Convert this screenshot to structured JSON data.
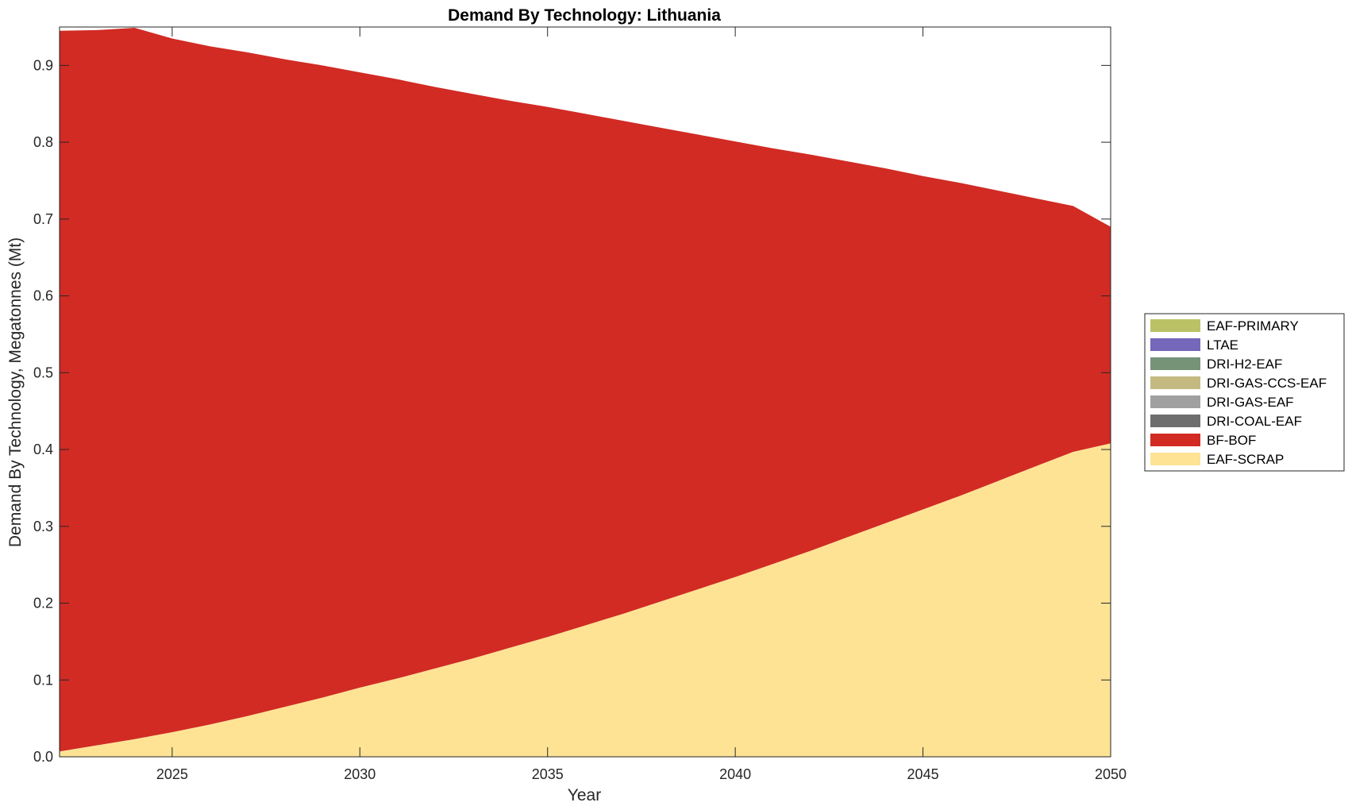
{
  "chart_data": {
    "type": "area",
    "title": "Demand By Technology: Lithuania",
    "xlabel": "Year",
    "ylabel": "Demand By Technology, Megatonnes (Mt)",
    "xlim": [
      2022,
      2050
    ],
    "ylim": [
      0,
      0.95
    ],
    "xticks": [
      2025,
      2030,
      2035,
      2040,
      2045,
      2050
    ],
    "yticks": [
      0.0,
      0.1,
      0.2,
      0.3,
      0.4,
      0.5,
      0.6,
      0.7,
      0.8,
      0.9
    ],
    "ytick_labels": [
      "0.0",
      "0.1",
      "0.2",
      "0.3",
      "0.4",
      "0.5",
      "0.6",
      "0.7",
      "0.8",
      "0.9"
    ],
    "grid": false,
    "stacked": true,
    "legend_position": "right",
    "x": [
      2022,
      2023,
      2024,
      2025,
      2026,
      2027,
      2028,
      2029,
      2030,
      2031,
      2032,
      2033,
      2034,
      2035,
      2036,
      2037,
      2038,
      2039,
      2040,
      2041,
      2042,
      2043,
      2044,
      2045,
      2046,
      2047,
      2048,
      2049,
      2050
    ],
    "series": [
      {
        "name": "EAF-SCRAP",
        "color": "#FEE395",
        "values": [
          0.007,
          0.015,
          0.023,
          0.032,
          0.042,
          0.053,
          0.065,
          0.077,
          0.09,
          0.102,
          0.115,
          0.128,
          0.142,
          0.156,
          0.171,
          0.186,
          0.202,
          0.218,
          0.234,
          0.251,
          0.268,
          0.286,
          0.304,
          0.322,
          0.34,
          0.359,
          0.378,
          0.397,
          0.408
        ]
      },
      {
        "name": "BF-BOF",
        "color": "#D12B24",
        "values": [
          0.938,
          0.931,
          0.926,
          0.903,
          0.883,
          0.864,
          0.843,
          0.823,
          0.801,
          0.78,
          0.757,
          0.735,
          0.712,
          0.69,
          0.666,
          0.642,
          0.617,
          0.592,
          0.567,
          0.541,
          0.516,
          0.489,
          0.462,
          0.434,
          0.407,
          0.378,
          0.349,
          0.32,
          0.282
        ]
      },
      {
        "name": "DRI-COAL-EAF",
        "color": "#6E6E6E",
        "values": [
          0,
          0,
          0,
          0,
          0,
          0,
          0,
          0,
          0,
          0,
          0,
          0,
          0,
          0,
          0,
          0,
          0,
          0,
          0,
          0,
          0,
          0,
          0,
          0,
          0,
          0,
          0,
          0,
          0
        ]
      },
      {
        "name": "DRI-GAS-EAF",
        "color": "#A0A0A0",
        "values": [
          0,
          0,
          0,
          0,
          0,
          0,
          0,
          0,
          0,
          0,
          0,
          0,
          0,
          0,
          0,
          0,
          0,
          0,
          0,
          0,
          0,
          0,
          0,
          0,
          0,
          0,
          0,
          0,
          0
        ]
      },
      {
        "name": "DRI-GAS-CCS-EAF",
        "color": "#C4BA81",
        "values": [
          0,
          0,
          0,
          0,
          0,
          0,
          0,
          0,
          0,
          0,
          0,
          0,
          0,
          0,
          0,
          0,
          0,
          0,
          0,
          0,
          0,
          0,
          0,
          0,
          0,
          0,
          0,
          0,
          0
        ]
      },
      {
        "name": "DRI-H2-EAF",
        "color": "#769378",
        "values": [
          0,
          0,
          0,
          0,
          0,
          0,
          0,
          0,
          0,
          0,
          0,
          0,
          0,
          0,
          0,
          0,
          0,
          0,
          0,
          0,
          0,
          0,
          0,
          0,
          0,
          0,
          0,
          0,
          0
        ]
      },
      {
        "name": "LTAE",
        "color": "#7567BA",
        "values": [
          0,
          0,
          0,
          0,
          0,
          0,
          0,
          0,
          0,
          0,
          0,
          0,
          0,
          0,
          0,
          0,
          0,
          0,
          0,
          0,
          0,
          0,
          0,
          0,
          0,
          0,
          0,
          0,
          0
        ]
      },
      {
        "name": "EAF-PRIMARY",
        "color": "#BBC266",
        "values": [
          0,
          0,
          0,
          0,
          0,
          0,
          0,
          0,
          0,
          0,
          0,
          0,
          0,
          0,
          0,
          0,
          0,
          0,
          0,
          0,
          0,
          0,
          0,
          0,
          0,
          0,
          0,
          0,
          0
        ]
      }
    ],
    "legend_order": [
      "EAF-PRIMARY",
      "LTAE",
      "DRI-H2-EAF",
      "DRI-GAS-CCS-EAF",
      "DRI-GAS-EAF",
      "DRI-COAL-EAF",
      "BF-BOF",
      "EAF-SCRAP"
    ]
  }
}
